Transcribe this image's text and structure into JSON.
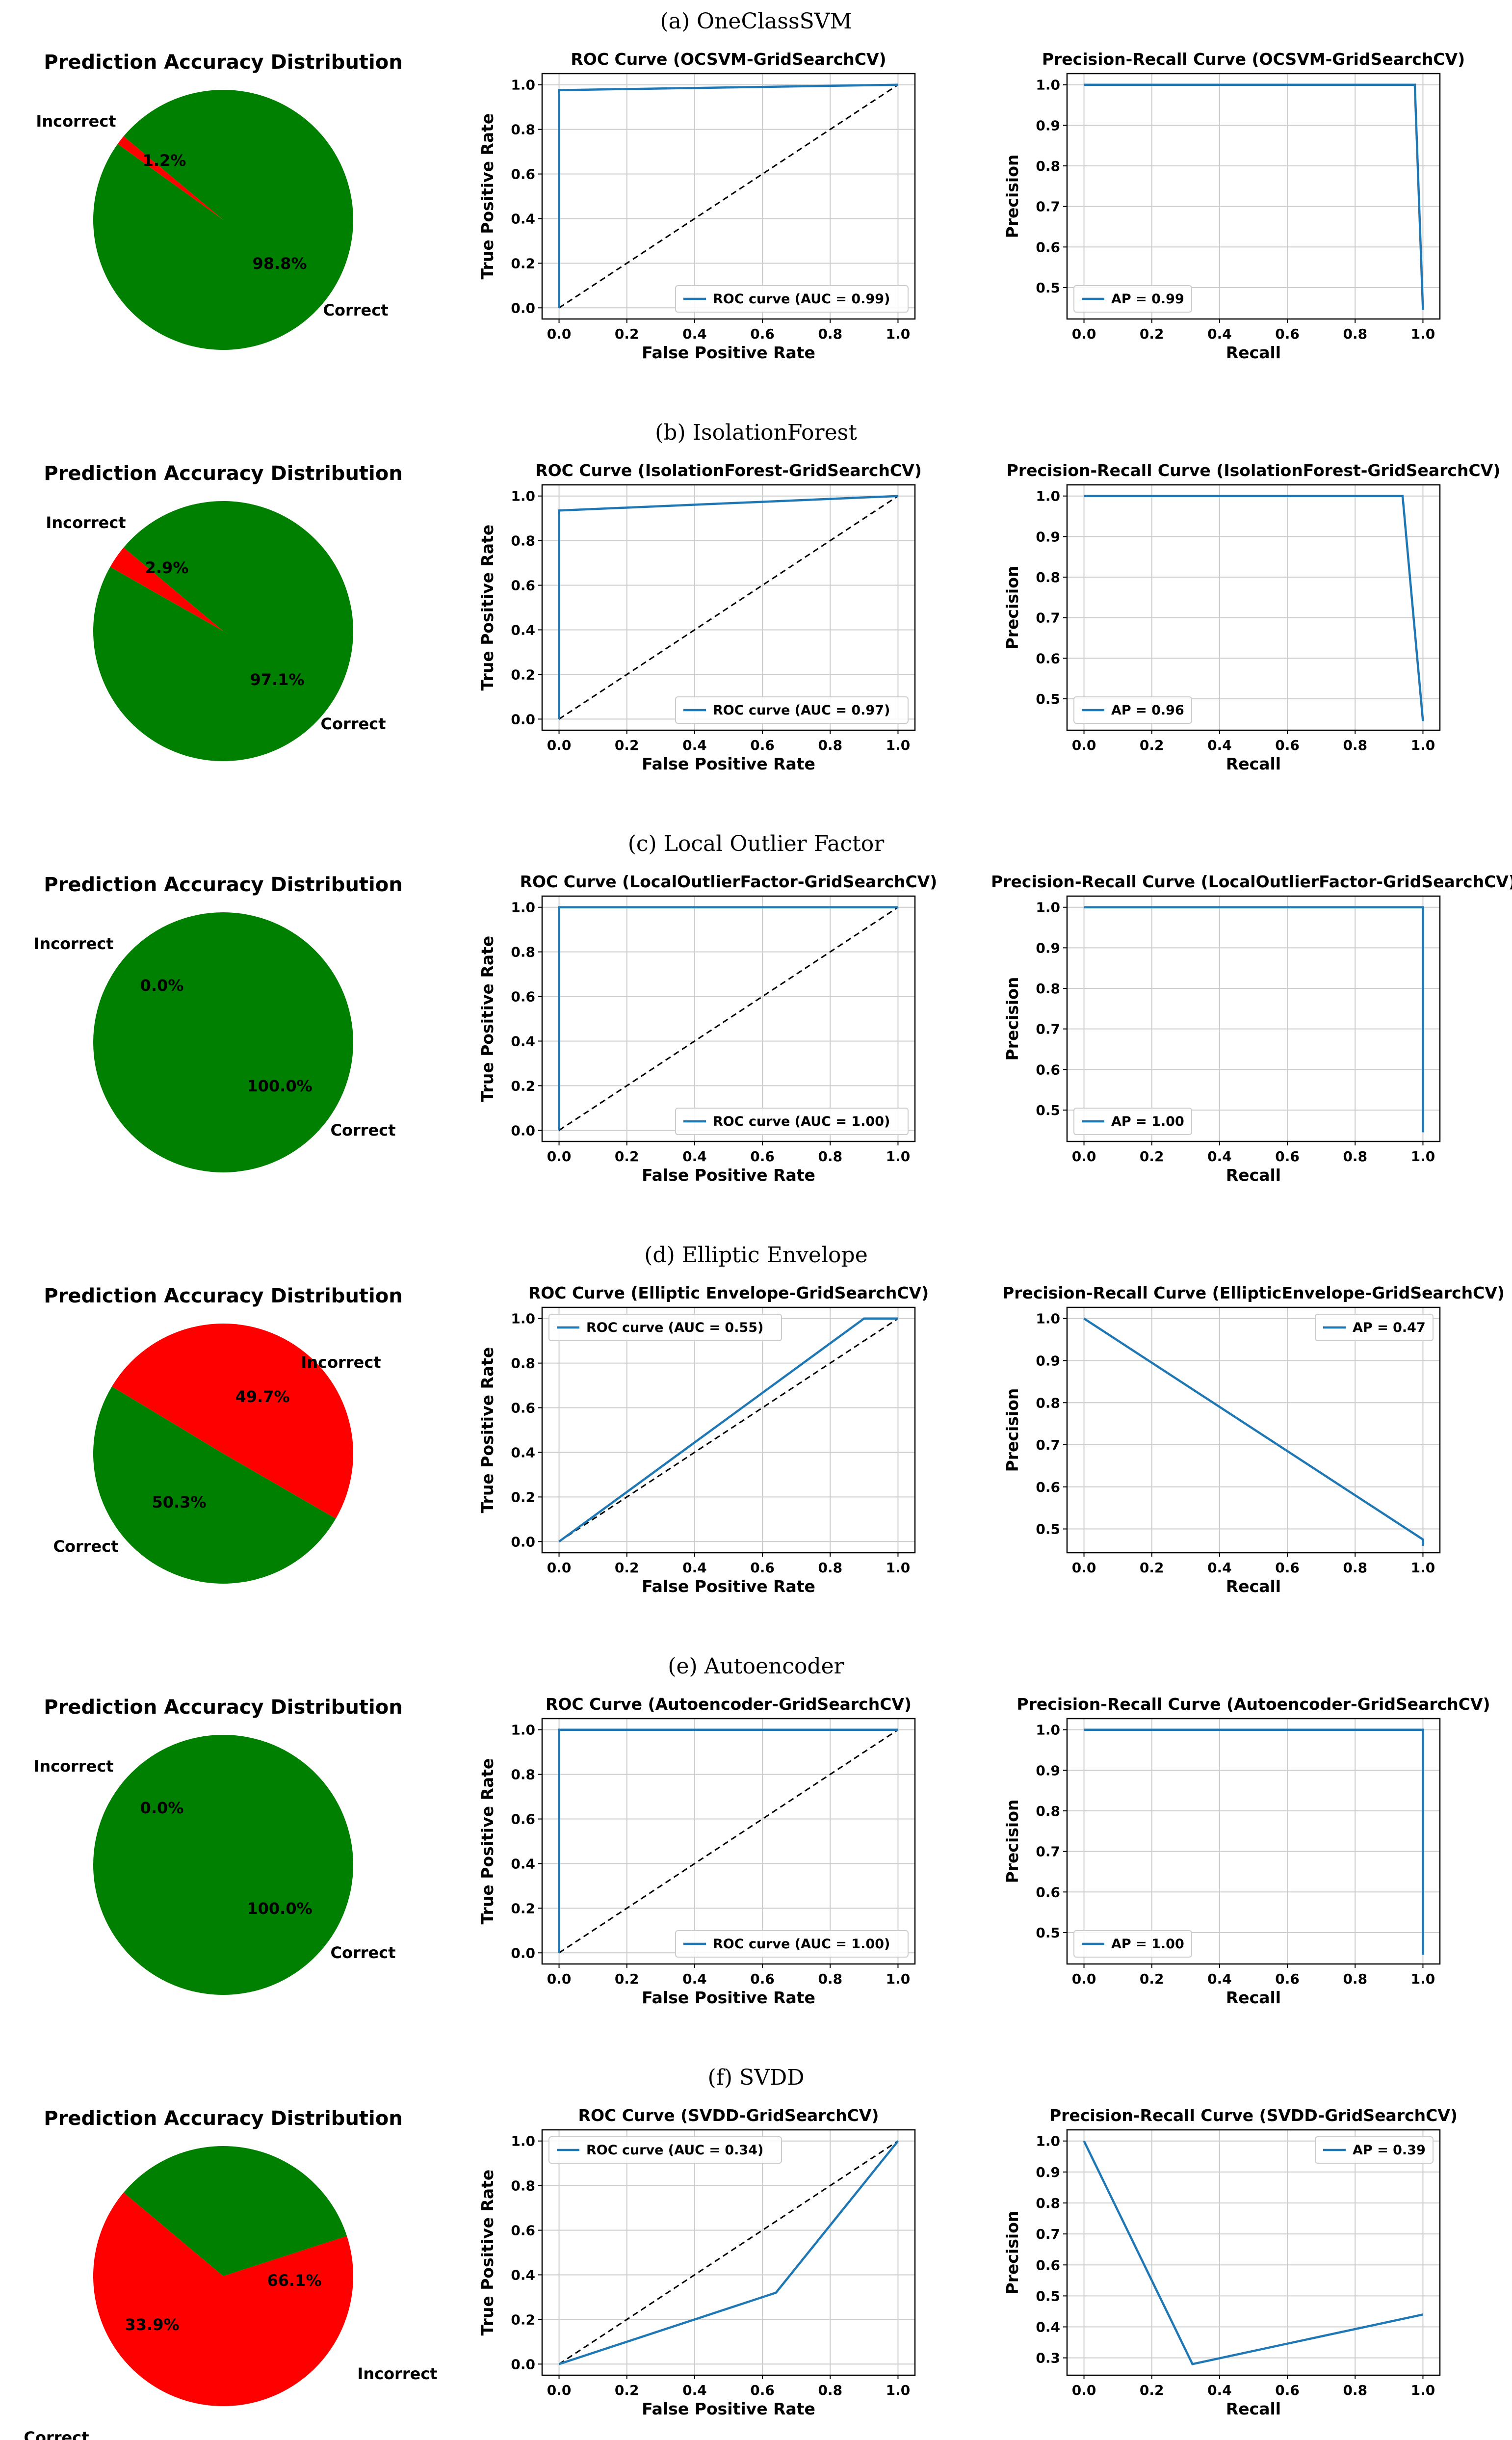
{
  "colors": {
    "correct": "#008000",
    "incorrect": "#ff0000",
    "curve": "#1f77b4",
    "diagonal": "#000000",
    "grid": "#cccccc"
  },
  "rows": [
    {
      "caption": "(a) OneClassSVM"
    },
    {
      "caption": "(b) IsolationForest"
    },
    {
      "caption": "(c) Local Outlier Factor"
    },
    {
      "caption": "(d) Elliptic Envelope"
    },
    {
      "caption": "(e) Autoencoder"
    },
    {
      "caption": "(f) SVDD"
    }
  ],
  "chart_data": [
    {
      "type": "pie",
      "title": "Prediction Accuracy Distribution",
      "categories": [
        "Incorrect",
        "Correct"
      ],
      "values": [
        1.2,
        98.8
      ],
      "value_labels": [
        "1.2%",
        "98.8%"
      ]
    },
    {
      "type": "line",
      "title": "ROC Curve (OCSVM-GridSearchCV)",
      "xlabel": "False Positive Rate",
      "ylabel": "True Positive Rate",
      "xlim": [
        0,
        1
      ],
      "ylim": [
        0,
        1
      ],
      "grid": true,
      "legend": "lower right",
      "xticks": [
        "0.0",
        "0.2",
        "0.4",
        "0.6",
        "0.8",
        "1.0"
      ],
      "yticks": [
        "0.0",
        "0.2",
        "0.4",
        "0.6",
        "0.8",
        "1.0"
      ],
      "series": [
        {
          "name": "ROC curve (AUC = 0.99)",
          "x": [
            0,
            0,
            1
          ],
          "y": [
            0,
            0.976,
            1
          ]
        }
      ],
      "diagonal": true
    },
    {
      "type": "line",
      "title": "Precision-Recall Curve (OCSVM-GridSearchCV)",
      "xlabel": "Recall",
      "ylabel": "Precision",
      "xlim": [
        0,
        1
      ],
      "ylim": [
        0.45,
        1
      ],
      "grid": true,
      "legend": "lower left",
      "xticks": [
        "0.0",
        "0.2",
        "0.4",
        "0.6",
        "0.8",
        "1.0"
      ],
      "yticks": [
        "0.5",
        "0.6",
        "0.7",
        "0.8",
        "0.9",
        "1.0"
      ],
      "series": [
        {
          "name": "AP = 0.99",
          "x": [
            0,
            0.976,
            1
          ],
          "y": [
            1,
            1,
            0.445
          ]
        }
      ]
    },
    {
      "type": "pie",
      "title": "Prediction Accuracy Distribution",
      "categories": [
        "Incorrect",
        "Correct"
      ],
      "values": [
        2.9,
        97.1
      ],
      "value_labels": [
        "2.9%",
        "97.1%"
      ]
    },
    {
      "type": "line",
      "title": "ROC Curve (IsolationForest-GridSearchCV)",
      "xlabel": "False Positive Rate",
      "ylabel": "True Positive Rate",
      "xlim": [
        0,
        1
      ],
      "ylim": [
        0,
        1
      ],
      "grid": true,
      "legend": "lower right",
      "xticks": [
        "0.0",
        "0.2",
        "0.4",
        "0.6",
        "0.8",
        "1.0"
      ],
      "yticks": [
        "0.0",
        "0.2",
        "0.4",
        "0.6",
        "0.8",
        "1.0"
      ],
      "series": [
        {
          "name": "ROC curve (AUC = 0.97)",
          "x": [
            0,
            0,
            1
          ],
          "y": [
            0,
            0.935,
            1
          ]
        }
      ],
      "diagonal": true
    },
    {
      "type": "line",
      "title": "Precision-Recall Curve (IsolationForest-GridSearchCV)",
      "xlabel": "Recall",
      "ylabel": "Precision",
      "xlim": [
        0,
        1
      ],
      "ylim": [
        0.45,
        1
      ],
      "grid": true,
      "legend": "lower left",
      "xticks": [
        "0.0",
        "0.2",
        "0.4",
        "0.6",
        "0.8",
        "1.0"
      ],
      "yticks": [
        "0.5",
        "0.6",
        "0.7",
        "0.8",
        "0.9",
        "1.0"
      ],
      "series": [
        {
          "name": "AP = 0.96",
          "x": [
            0,
            0.94,
            1
          ],
          "y": [
            1,
            1,
            0.445
          ]
        }
      ]
    },
    {
      "type": "pie",
      "title": "Prediction Accuracy Distribution",
      "categories": [
        "Incorrect",
        "Correct"
      ],
      "values": [
        0.0,
        100.0
      ],
      "value_labels": [
        "0.0%",
        "100.0%"
      ]
    },
    {
      "type": "line",
      "title": "ROC Curve (LocalOutlierFactor-GridSearchCV)",
      "xlabel": "False Positive Rate",
      "ylabel": "True Positive Rate",
      "xlim": [
        0,
        1
      ],
      "ylim": [
        0,
        1
      ],
      "grid": true,
      "legend": "lower right",
      "xticks": [
        "0.0",
        "0.2",
        "0.4",
        "0.6",
        "0.8",
        "1.0"
      ],
      "yticks": [
        "0.0",
        "0.2",
        "0.4",
        "0.6",
        "0.8",
        "1.0"
      ],
      "series": [
        {
          "name": "ROC curve (AUC = 1.00)",
          "x": [
            0,
            0,
            1
          ],
          "y": [
            0,
            1,
            1
          ]
        }
      ],
      "diagonal": true
    },
    {
      "type": "line",
      "title": "Precision-Recall Curve (LocalOutlierFactor-GridSearchCV)",
      "xlabel": "Recall",
      "ylabel": "Precision",
      "xlim": [
        0,
        1
      ],
      "ylim": [
        0.45,
        1
      ],
      "grid": true,
      "legend": "lower left",
      "xticks": [
        "0.0",
        "0.2",
        "0.4",
        "0.6",
        "0.8",
        "1.0"
      ],
      "yticks": [
        "0.5",
        "0.6",
        "0.7",
        "0.8",
        "0.9",
        "1.0"
      ],
      "series": [
        {
          "name": "AP = 1.00",
          "x": [
            0,
            1,
            1
          ],
          "y": [
            1,
            1,
            0.445
          ]
        }
      ]
    },
    {
      "type": "pie",
      "title": "Prediction Accuracy Distribution",
      "categories": [
        "Incorrect",
        "Correct"
      ],
      "values": [
        49.7,
        50.3
      ],
      "value_labels": [
        "49.7%",
        "50.3%"
      ]
    },
    {
      "type": "line",
      "title": "ROC Curve (Elliptic Envelope-GridSearchCV)",
      "xlabel": "False Positive Rate",
      "ylabel": "True Positive Rate",
      "xlim": [
        0,
        1
      ],
      "ylim": [
        0,
        1
      ],
      "grid": true,
      "legend": "upper left",
      "xticks": [
        "0.0",
        "0.2",
        "0.4",
        "0.6",
        "0.8",
        "1.0"
      ],
      "yticks": [
        "0.0",
        "0.2",
        "0.4",
        "0.6",
        "0.8",
        "1.0"
      ],
      "series": [
        {
          "name": "ROC curve (AUC = 0.55)",
          "x": [
            0,
            0.9,
            1
          ],
          "y": [
            0,
            1,
            1
          ]
        }
      ],
      "diagonal": true
    },
    {
      "type": "line",
      "title": "Precision-Recall Curve (EllipticEnvelope-GridSearchCV)",
      "xlabel": "Recall",
      "ylabel": "Precision",
      "xlim": [
        0,
        1
      ],
      "ylim": [
        0.47,
        1
      ],
      "grid": true,
      "legend": "upper right",
      "xticks": [
        "0.0",
        "0.2",
        "0.4",
        "0.6",
        "0.8",
        "1.0"
      ],
      "yticks": [
        "0.5",
        "0.6",
        "0.7",
        "0.8",
        "0.9",
        "1.0"
      ],
      "series": [
        {
          "name": "AP = 0.47",
          "x": [
            0,
            1,
            1
          ],
          "y": [
            1,
            0.475,
            0.46
          ]
        }
      ]
    },
    {
      "type": "pie",
      "title": "Prediction Accuracy Distribution",
      "categories": [
        "Incorrect",
        "Correct"
      ],
      "values": [
        0.0,
        100.0
      ],
      "value_labels": [
        "0.0%",
        "100.0%"
      ]
    },
    {
      "type": "line",
      "title": "ROC Curve (Autoencoder-GridSearchCV)",
      "xlabel": "False Positive Rate",
      "ylabel": "True Positive Rate",
      "xlim": [
        0,
        1
      ],
      "ylim": [
        0,
        1
      ],
      "grid": true,
      "legend": "lower right",
      "xticks": [
        "0.0",
        "0.2",
        "0.4",
        "0.6",
        "0.8",
        "1.0"
      ],
      "yticks": [
        "0.0",
        "0.2",
        "0.4",
        "0.6",
        "0.8",
        "1.0"
      ],
      "series": [
        {
          "name": "ROC curve (AUC = 1.00)",
          "x": [
            0,
            0,
            1
          ],
          "y": [
            0,
            1,
            1
          ]
        }
      ],
      "diagonal": true
    },
    {
      "type": "line",
      "title": "Precision-Recall Curve (Autoencoder-GridSearchCV)",
      "xlabel": "Recall",
      "ylabel": "Precision",
      "xlim": [
        0,
        1
      ],
      "ylim": [
        0.45,
        1
      ],
      "grid": true,
      "legend": "lower left",
      "xticks": [
        "0.0",
        "0.2",
        "0.4",
        "0.6",
        "0.8",
        "1.0"
      ],
      "yticks": [
        "0.5",
        "0.6",
        "0.7",
        "0.8",
        "0.9",
        "1.0"
      ],
      "series": [
        {
          "name": "AP = 1.00",
          "x": [
            0,
            1,
            1
          ],
          "y": [
            1,
            1,
            0.445
          ]
        }
      ]
    },
    {
      "type": "pie",
      "title": "Prediction Accuracy Distribution",
      "categories": [
        "Incorrect",
        "Correct"
      ],
      "values": [
        66.1,
        33.9
      ],
      "value_labels": [
        "66.1%",
        "33.9%"
      ]
    },
    {
      "type": "line",
      "title": "ROC Curve (SVDD-GridSearchCV)",
      "xlabel": "False Positive Rate",
      "ylabel": "True Positive Rate",
      "xlim": [
        0,
        1
      ],
      "ylim": [
        0,
        1
      ],
      "grid": true,
      "legend": "upper left",
      "xticks": [
        "0.0",
        "0.2",
        "0.4",
        "0.6",
        "0.8",
        "1.0"
      ],
      "yticks": [
        "0.0",
        "0.2",
        "0.4",
        "0.6",
        "0.8",
        "1.0"
      ],
      "series": [
        {
          "name": "ROC curve (AUC = 0.34)",
          "x": [
            0,
            0.64,
            1
          ],
          "y": [
            0,
            0.32,
            1
          ]
        }
      ],
      "diagonal": true
    },
    {
      "type": "line",
      "title": "Precision-Recall Curve (SVDD-GridSearchCV)",
      "xlabel": "Recall",
      "ylabel": "Precision",
      "xlim": [
        0,
        1
      ],
      "ylim": [
        0.28,
        1
      ],
      "grid": true,
      "legend": "upper right",
      "xticks": [
        "0.0",
        "0.2",
        "0.4",
        "0.6",
        "0.8",
        "1.0"
      ],
      "yticks": [
        "0.3",
        "0.4",
        "0.5",
        "0.6",
        "0.7",
        "0.8",
        "0.9",
        "1.0"
      ],
      "series": [
        {
          "name": "AP = 0.39",
          "x": [
            0,
            0.32,
            1
          ],
          "y": [
            1,
            0.28,
            0.44
          ]
        }
      ]
    }
  ]
}
